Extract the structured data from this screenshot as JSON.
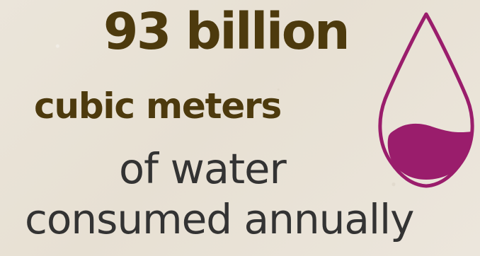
{
  "infographic": {
    "headline": "93 billion",
    "subhead": "cubic meters",
    "line_one": "of water",
    "line_two": "consumed annually",
    "icon": "water-drop-icon",
    "colors": {
      "headline": "#4d3a0d",
      "body": "#333333",
      "accent": "#9a1d6c",
      "background": "#e9e3d8"
    }
  }
}
